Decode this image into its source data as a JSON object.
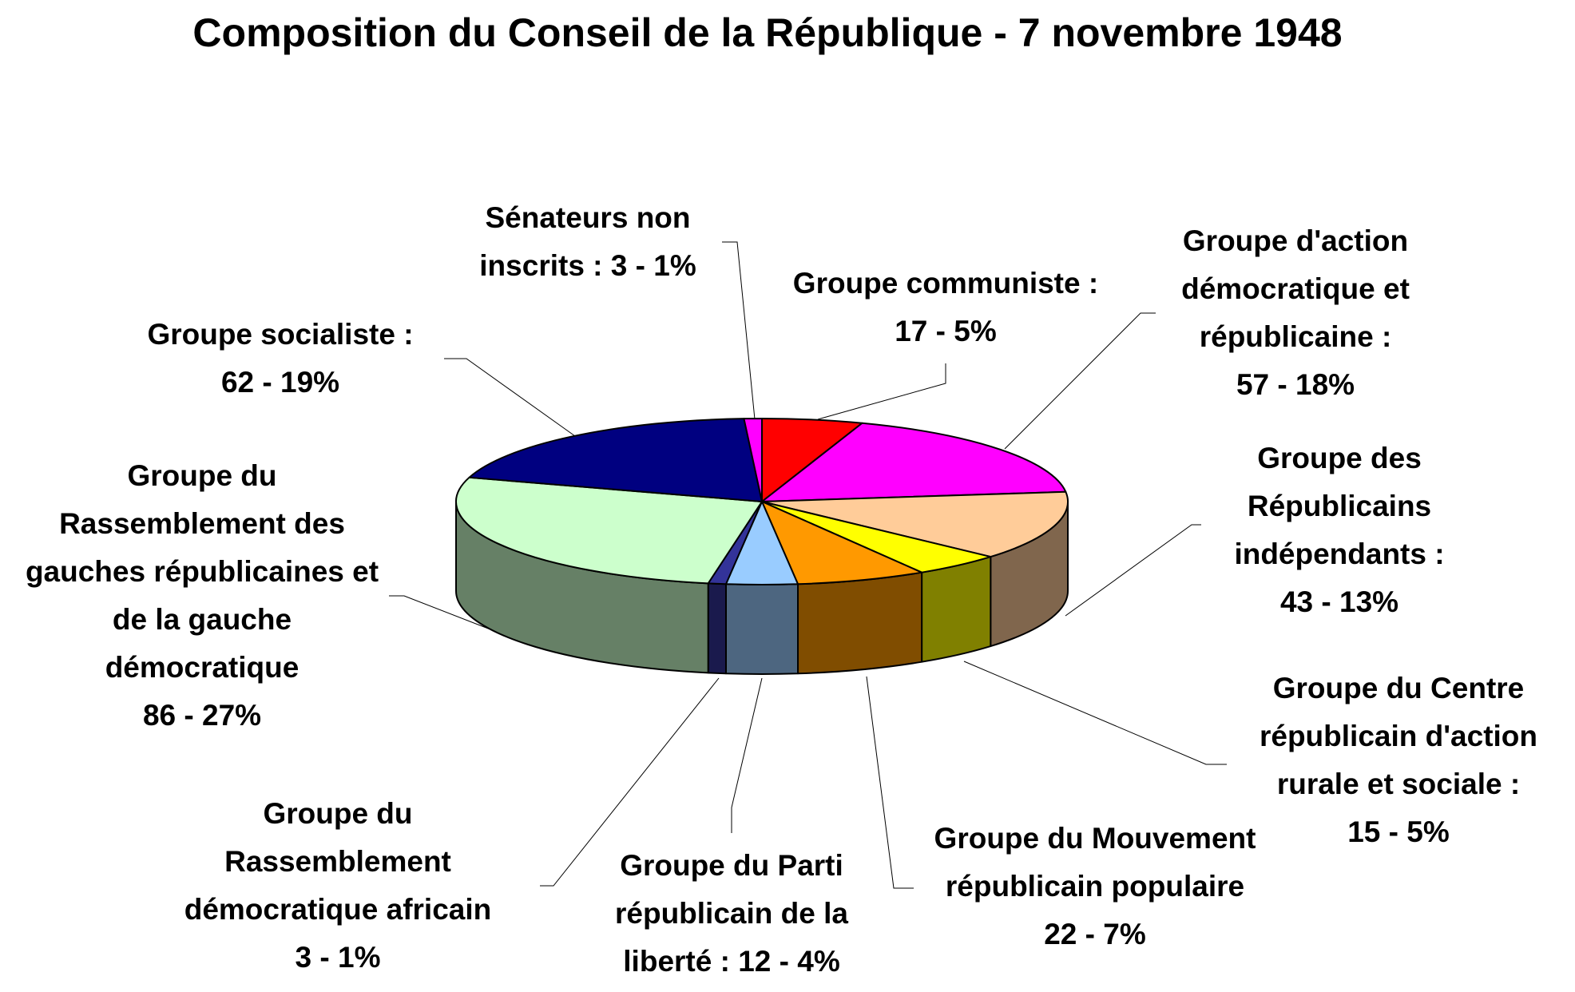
{
  "chart_data": {
    "type": "pie",
    "title": "Composition du Conseil de la République - 7 novembre 1948",
    "categories": [
      "Groupe communiste :",
      "Groupe d'action démocratique et républicaine :",
      "Groupe des Républicains indépendants :",
      "Groupe du Centre républicain d'action rurale et sociale :",
      "Groupe du Mouvement républicain populaire",
      "Groupe du Parti républicain de la liberté :",
      "Groupe du Rassemblement démocratique africain",
      "Groupe du Rassemblement des gauches républicaines et de la gauche démocratique",
      "Groupe socialiste :",
      "Sénateurs non inscrits :"
    ],
    "values": [
      17,
      57,
      43,
      15,
      22,
      12,
      3,
      86,
      62,
      3
    ],
    "value_labels": [
      "17 - 5%",
      "57 - 18%",
      "43 - 13%",
      "15 - 5%",
      "22 - 7%",
      "12 - 4%",
      "3 - 1%",
      "86 - 27%",
      "62 - 19%",
      "3 - 1%"
    ],
    "colors": [
      "#ff0000",
      "#ff00ff",
      "#ffcc99",
      "#ffff00",
      "#ff9900",
      "#99ccff",
      "#333399",
      "#ccffcc",
      "#000080",
      "#ff00ff"
    ]
  }
}
